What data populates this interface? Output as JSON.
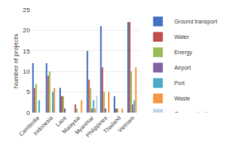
{
  "chart_data": {
    "type": "bar",
    "categories": [
      "Cambodia",
      "Indonesia",
      "Laos",
      "Malaysia",
      "Myanmar",
      "Philippines",
      "Thailand",
      "Vietnam"
    ],
    "series": [
      {
        "name": "Ground transport",
        "color": "#4472C4",
        "values": [
          12,
          12,
          6,
          0,
          15,
          21,
          4,
          22
        ]
      },
      {
        "name": "Water",
        "color": "#C0504D",
        "values": [
          6,
          9,
          4,
          2,
          8,
          11,
          1,
          22
        ]
      },
      {
        "name": "Energy",
        "color": "#9BBB59",
        "values": [
          7,
          10,
          4,
          1,
          6,
          5,
          1,
          10
        ]
      },
      {
        "name": "Airport",
        "color": "#8064A2",
        "values": [
          0,
          0,
          1,
          0,
          1,
          1,
          0,
          2
        ]
      },
      {
        "name": "Port",
        "color": "#4BACC6",
        "values": [
          3,
          5,
          0,
          0,
          3,
          0,
          0,
          3
        ]
      },
      {
        "name": "Waste",
        "color": "#F79646",
        "values": [
          0,
          6,
          0,
          3,
          1,
          5,
          1,
          11
        ]
      },
      {
        "name": "Communications",
        "color": "#BDD7EE",
        "values": [
          0,
          0,
          0,
          0,
          4,
          0,
          0,
          0
        ]
      }
    ],
    "ylabel": "Number of projects",
    "ylim": [
      0,
      25
    ],
    "yticks": [
      0,
      5,
      10,
      15,
      20,
      25
    ],
    "grid": true,
    "legend": "right"
  }
}
